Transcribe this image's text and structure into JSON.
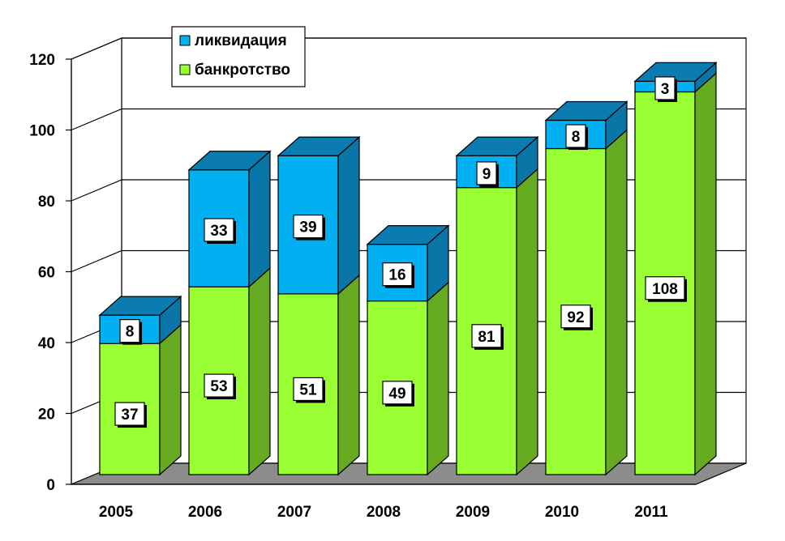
{
  "chart_data": {
    "type": "bar",
    "stacked": true,
    "three_d": true,
    "categories": [
      "2005",
      "2006",
      "2007",
      "2008",
      "2009",
      "2010",
      "2011"
    ],
    "series": [
      {
        "name": "банкротство",
        "values": [
          37,
          53,
          51,
          49,
          81,
          92,
          108
        ],
        "color": "#99ff33",
        "side_color": "#66aa22",
        "top_color": "#88dd33"
      },
      {
        "name": "ликвидация",
        "values": [
          8,
          33,
          39,
          16,
          9,
          8,
          3
        ],
        "color": "#00b0f0",
        "side_color": "#0a76a8",
        "top_color": "#0b7cb0"
      }
    ],
    "ylim": [
      0,
      120
    ],
    "yticks": [
      0,
      20,
      40,
      60,
      80,
      100,
      120
    ],
    "grid": true,
    "legend_position": "top-left",
    "legend_order": [
      "ликвидация",
      "банкротство"
    ],
    "data_labels": true
  }
}
